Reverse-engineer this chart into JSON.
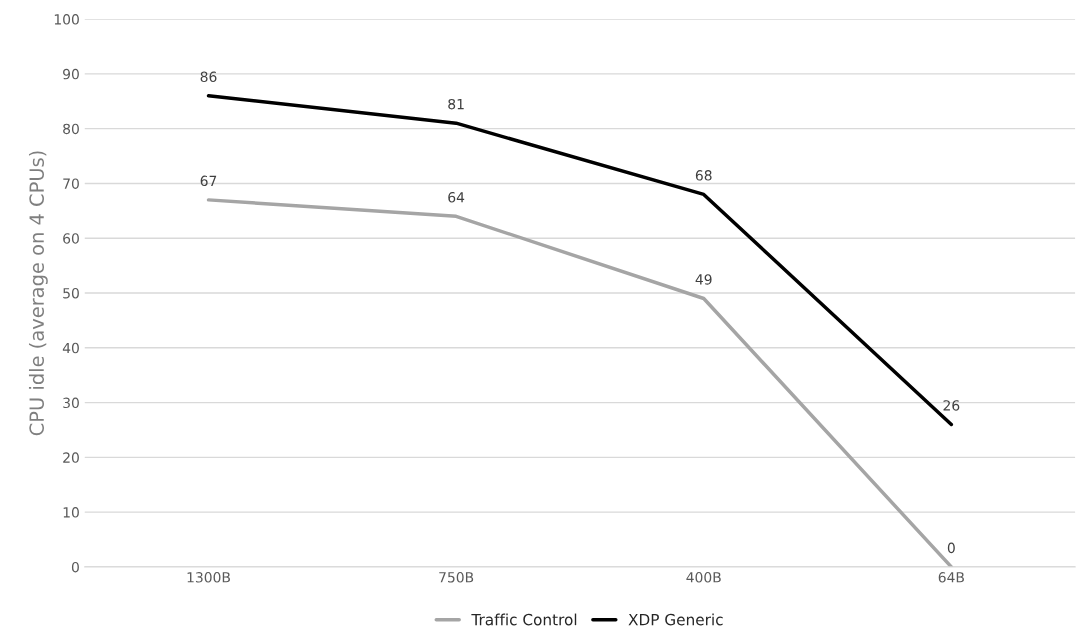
{
  "chart_data": {
    "type": "line",
    "ylabel": "CPU idle (average on 4 CPUs)",
    "categories": [
      "1300B",
      "750B",
      "400B",
      "64B"
    ],
    "series": [
      {
        "name": "Traffic Control",
        "color": "#a5a5a5",
        "values": [
          67,
          64,
          49,
          0
        ]
      },
      {
        "name": "XDP Generic",
        "color": "#000000",
        "values": [
          86,
          81,
          68,
          26
        ]
      }
    ],
    "ylim": [
      0,
      100
    ],
    "yticks": [
      0,
      10,
      20,
      30,
      40,
      50,
      60,
      70,
      80,
      90,
      100
    ],
    "grid": "y",
    "legend": "bottom",
    "data_labels": true,
    "marker": "none",
    "line_style": "solid"
  }
}
